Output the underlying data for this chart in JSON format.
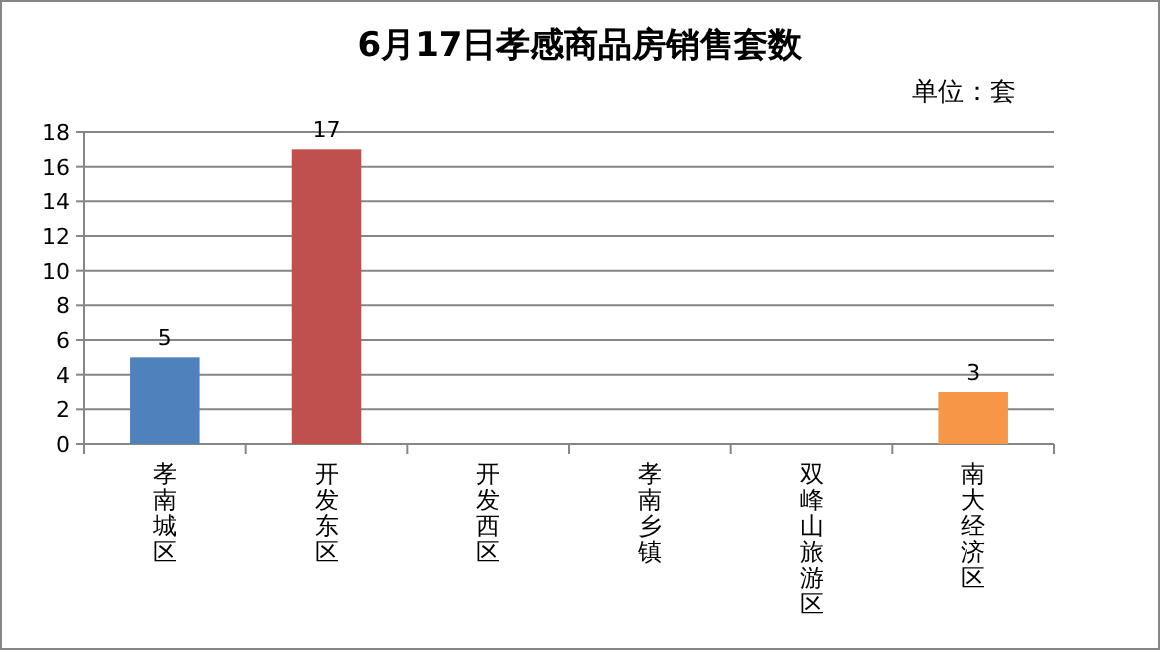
{
  "chart_data": {
    "type": "bar",
    "title": "6月17日孝感商品房销售套数",
    "annotations": [
      "单位：套"
    ],
    "categories": [
      "孝南城区",
      "开发东区",
      "开发西区",
      "孝南乡镇",
      "双峰山旅游区",
      "南大经济区"
    ],
    "values": [
      5,
      17,
      0,
      0,
      0,
      3
    ],
    "colors": [
      "#4f81bd",
      "#c0504d",
      "#9bbb59",
      "#8064a2",
      "#4bacc6",
      "#f79646"
    ],
    "value_labels": [
      "5",
      "17",
      null,
      null,
      null,
      "3"
    ],
    "ylim": [
      0,
      18
    ],
    "yticks": [
      0,
      2,
      4,
      6,
      8,
      10,
      12,
      14,
      16,
      18
    ],
    "grid": "y"
  }
}
